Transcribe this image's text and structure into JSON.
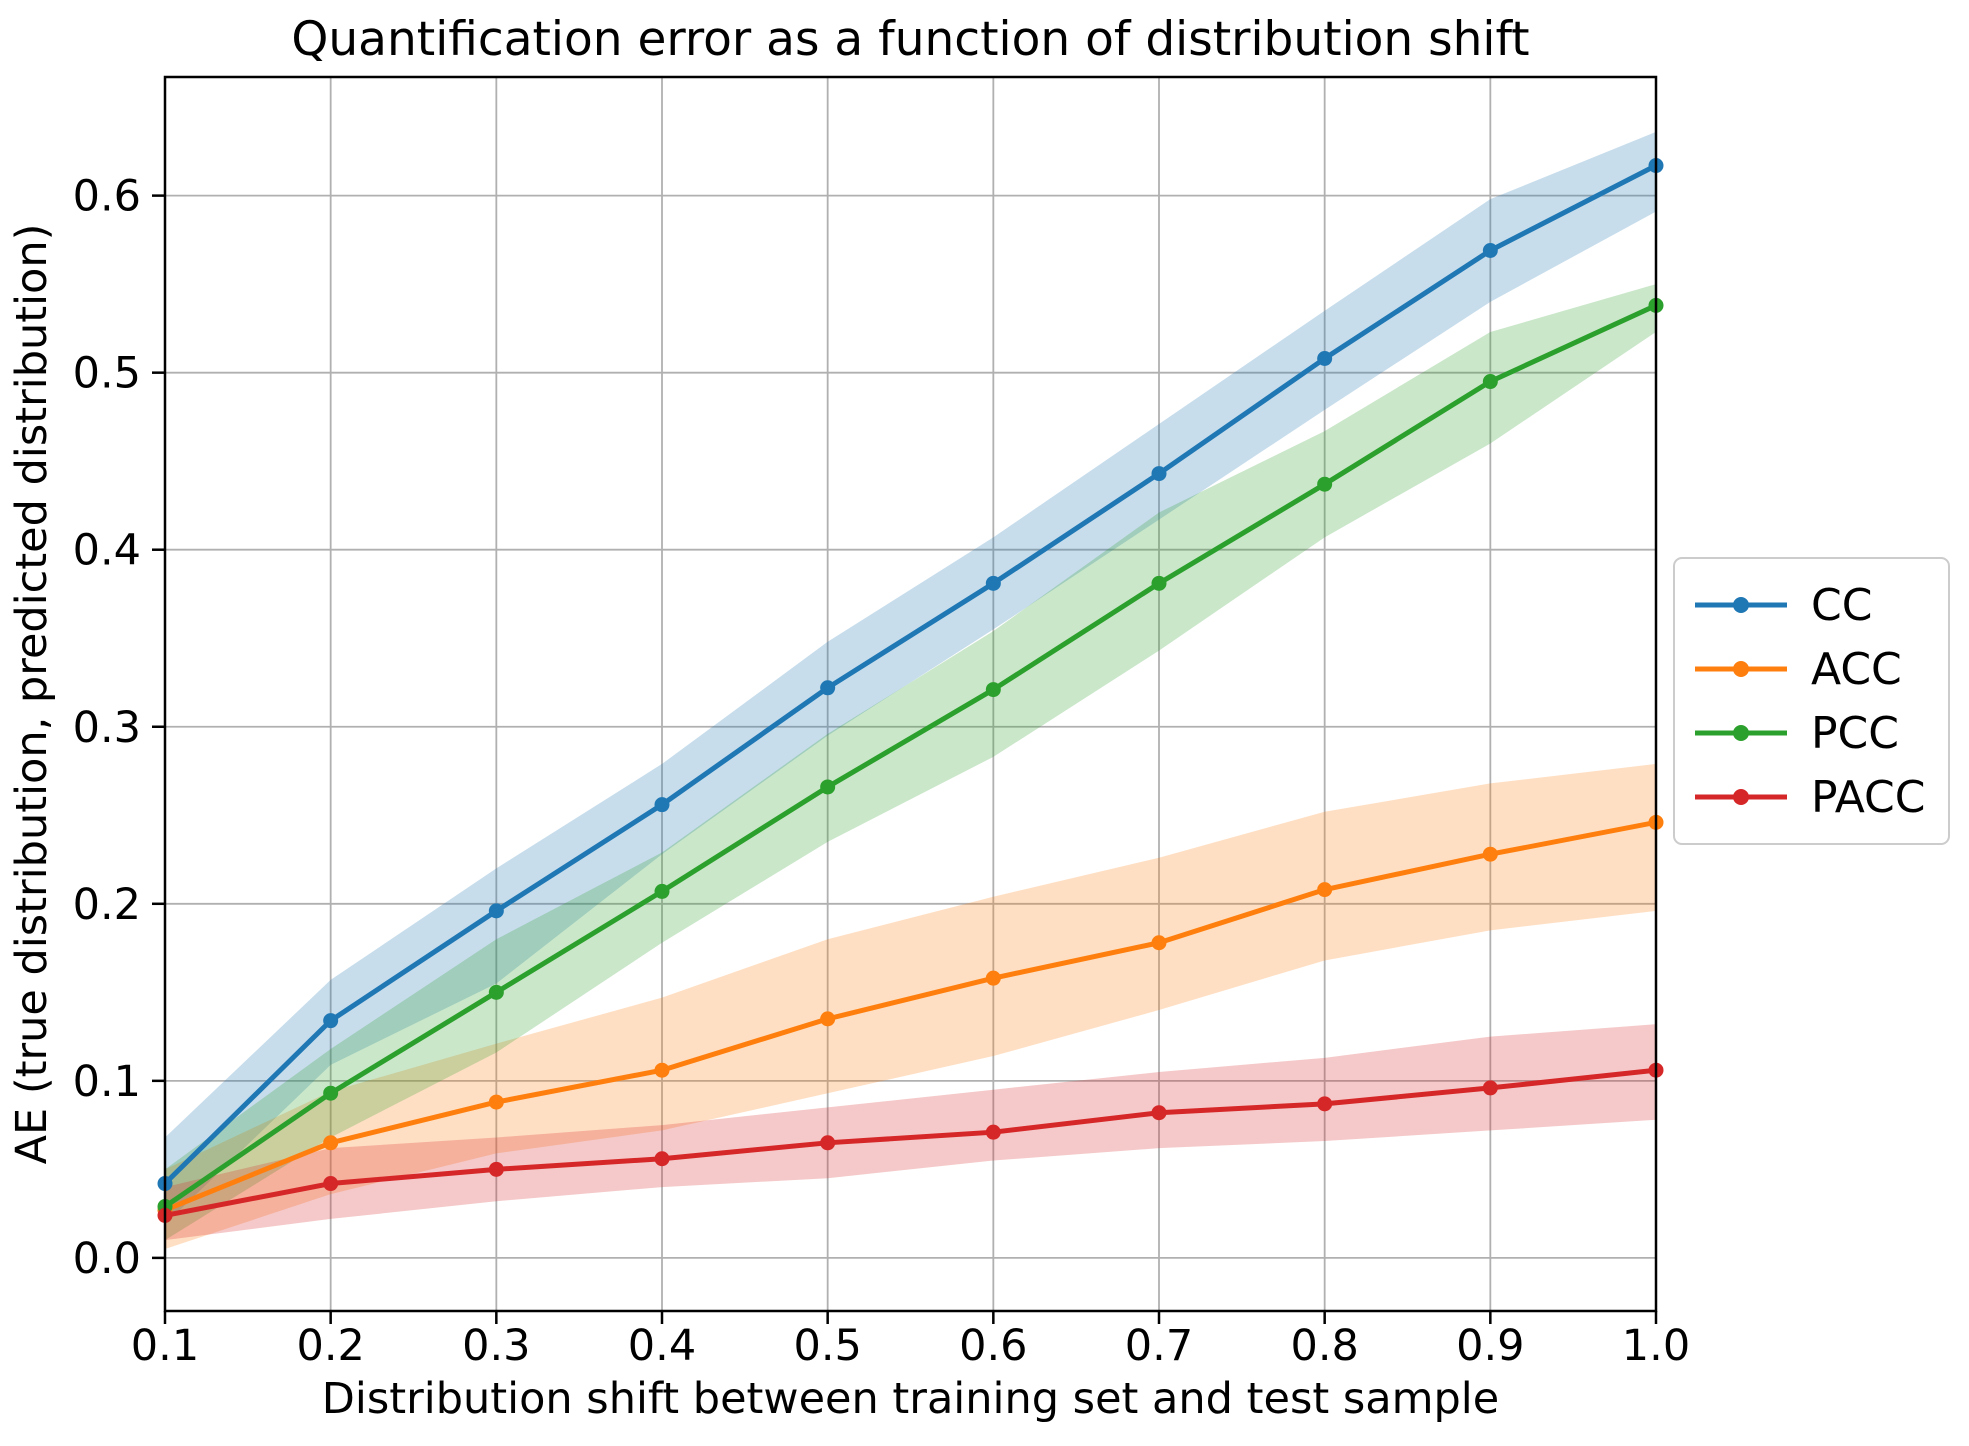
{
  "figure": {
    "background": "#ffffff",
    "frame_color": "#000000"
  },
  "chart_data": {
    "type": "line",
    "title": "Quantification error as a function of distribution shift",
    "xlabel": "Distribution shift between training set and test sample",
    "ylabel": "AE (true distribution, predicted distribution)",
    "x": [
      0.1,
      0.2,
      0.3,
      0.4,
      0.5,
      0.6,
      0.7,
      0.8,
      0.9,
      1.0
    ],
    "xlim": [
      0.1,
      1.0
    ],
    "ylim": [
      -0.03,
      0.667
    ],
    "xticks": [
      0.1,
      0.2,
      0.3,
      0.4,
      0.5,
      0.6,
      0.7,
      0.8,
      0.9,
      1.0
    ],
    "xtick_labels": [
      "0.1",
      "0.2",
      "0.3",
      "0.4",
      "0.5",
      "0.6",
      "0.7",
      "0.8",
      "0.9",
      "1.0"
    ],
    "yticks": [
      0.0,
      0.1,
      0.2,
      0.3,
      0.4,
      0.5,
      0.6
    ],
    "ytick_labels": [
      "0.0",
      "0.1",
      "0.2",
      "0.3",
      "0.4",
      "0.5",
      "0.6"
    ],
    "grid": true,
    "grid_color": "#b0b0b0",
    "band_alpha": 0.25,
    "legend": {
      "position": "right-outside",
      "labels": [
        "CC",
        "ACC",
        "PCC",
        "PACC"
      ]
    },
    "series": [
      {
        "name": "CC",
        "color": "#1f77b4",
        "values": [
          0.042,
          0.134,
          0.196,
          0.256,
          0.322,
          0.381,
          0.443,
          0.508,
          0.569,
          0.617
        ],
        "band_lo": [
          0.019,
          0.109,
          0.155,
          0.228,
          0.295,
          0.355,
          0.417,
          0.479,
          0.54,
          0.591
        ],
        "band_hi": [
          0.068,
          0.157,
          0.22,
          0.279,
          0.348,
          0.407,
          0.471,
          0.535,
          0.598,
          0.636
        ]
      },
      {
        "name": "ACC",
        "color": "#ff7f0e",
        "values": [
          0.027,
          0.065,
          0.088,
          0.106,
          0.135,
          0.158,
          0.178,
          0.208,
          0.228,
          0.246
        ],
        "band_lo": [
          0.005,
          0.036,
          0.059,
          0.072,
          0.093,
          0.114,
          0.14,
          0.168,
          0.185,
          0.196
        ],
        "band_hi": [
          0.05,
          0.094,
          0.121,
          0.147,
          0.18,
          0.204,
          0.226,
          0.252,
          0.268,
          0.279
        ]
      },
      {
        "name": "PCC",
        "color": "#2ca02c",
        "values": [
          0.029,
          0.093,
          0.15,
          0.207,
          0.266,
          0.321,
          0.381,
          0.437,
          0.495,
          0.538
        ],
        "band_lo": [
          0.01,
          0.068,
          0.116,
          0.178,
          0.235,
          0.283,
          0.343,
          0.407,
          0.46,
          0.523
        ],
        "band_hi": [
          0.05,
          0.118,
          0.18,
          0.229,
          0.296,
          0.354,
          0.421,
          0.467,
          0.523,
          0.55
        ]
      },
      {
        "name": "PACC",
        "color": "#d62728",
        "values": [
          0.024,
          0.042,
          0.05,
          0.056,
          0.065,
          0.071,
          0.082,
          0.087,
          0.096,
          0.106
        ],
        "band_lo": [
          0.01,
          0.022,
          0.032,
          0.04,
          0.045,
          0.055,
          0.062,
          0.066,
          0.072,
          0.078
        ],
        "band_hi": [
          0.04,
          0.062,
          0.068,
          0.075,
          0.085,
          0.095,
          0.105,
          0.113,
          0.125,
          0.132
        ]
      }
    ]
  }
}
